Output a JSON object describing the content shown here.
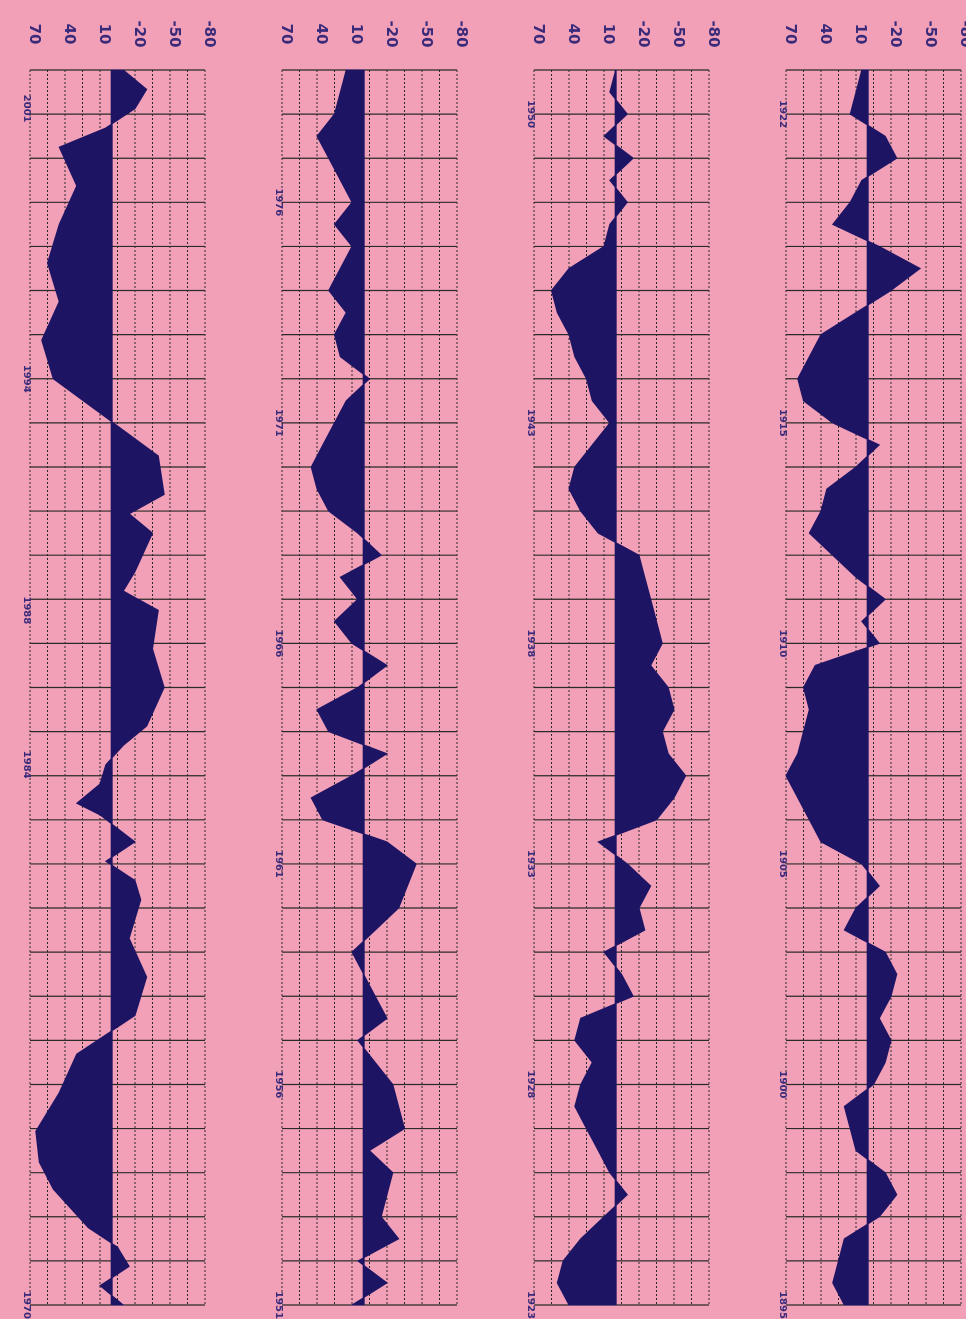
{
  "chart_data": {
    "type": "area",
    "orientation": "rotated",
    "axis_ticks": [
      "70",
      "40",
      "10",
      "-20",
      "-50",
      "-80"
    ],
    "ylim": [
      -80,
      70
    ],
    "grid": true,
    "colors": {
      "background": "#f2a0b8",
      "fill": "#1e1464",
      "grid": "#2a2a2a",
      "text": "#3a2a7a"
    },
    "panels": [
      {
        "year_labels": [
          "1970",
          "1984",
          "1988",
          "1994",
          "2001"
        ],
        "x_range": [
          1970,
          2002
        ],
        "samples": [
          [
            1970.0,
            -10
          ],
          [
            1970.5,
            10
          ],
          [
            1971.0,
            -15
          ],
          [
            1971.5,
            -5
          ],
          [
            1972.0,
            20
          ],
          [
            1973.0,
            50
          ],
          [
            1973.7,
            62
          ],
          [
            1974.5,
            65
          ],
          [
            1975.5,
            45
          ],
          [
            1976.5,
            30
          ],
          [
            1977.5,
            -20
          ],
          [
            1978.5,
            -30
          ],
          [
            1979.5,
            -15
          ],
          [
            1980.5,
            -25
          ],
          [
            1981.0,
            -20
          ],
          [
            1981.5,
            5
          ],
          [
            1982.0,
            -20
          ],
          [
            1982.7,
            10
          ],
          [
            1983.0,
            30
          ],
          [
            1983.5,
            10
          ],
          [
            1984.0,
            5
          ],
          [
            1984.5,
            -10
          ],
          [
            1985.0,
            -30
          ],
          [
            1986.0,
            -45
          ],
          [
            1987.0,
            -35
          ],
          [
            1988.0,
            -40
          ],
          [
            1988.5,
            -10
          ],
          [
            1989.0,
            -20
          ],
          [
            1990.0,
            -35
          ],
          [
            1990.5,
            -15
          ],
          [
            1991.0,
            -45
          ],
          [
            1992.0,
            -40
          ],
          [
            1993.0,
            5
          ],
          [
            1994.0,
            50
          ],
          [
            1995.0,
            60
          ],
          [
            1996.0,
            45
          ],
          [
            1997.0,
            55
          ],
          [
            1998.0,
            45
          ],
          [
            1999.0,
            30
          ],
          [
            2000.0,
            45
          ],
          [
            2000.5,
            5
          ],
          [
            2001.0,
            -20
          ],
          [
            2001.5,
            -30
          ],
          [
            2002.0,
            -10
          ]
        ]
      },
      {
        "year_labels": [
          "1951",
          "1956",
          "1961",
          "1966",
          "1971",
          "1976"
        ],
        "x_range": [
          1951,
          1979
        ],
        "samples": [
          [
            1951.0,
            10
          ],
          [
            1951.5,
            -20
          ],
          [
            1952.0,
            5
          ],
          [
            1952.5,
            -30
          ],
          [
            1953.0,
            -15
          ],
          [
            1954.0,
            -25
          ],
          [
            1954.5,
            -5
          ],
          [
            1955.0,
            -35
          ],
          [
            1956.0,
            -25
          ],
          [
            1957.0,
            5
          ],
          [
            1957.5,
            -20
          ],
          [
            1958.0,
            -10
          ],
          [
            1959.0,
            10
          ],
          [
            1960.0,
            -30
          ],
          [
            1961.0,
            -45
          ],
          [
            1961.5,
            -20
          ],
          [
            1962.0,
            35
          ],
          [
            1962.5,
            45
          ],
          [
            1963.0,
            10
          ],
          [
            1963.5,
            -20
          ],
          [
            1964.0,
            30
          ],
          [
            1964.5,
            40
          ],
          [
            1965.0,
            5
          ],
          [
            1965.5,
            -20
          ],
          [
            1966.0,
            10
          ],
          [
            1966.5,
            25
          ],
          [
            1967.0,
            5
          ],
          [
            1967.5,
            20
          ],
          [
            1968.0,
            -15
          ],
          [
            1968.5,
            5
          ],
          [
            1969.0,
            30
          ],
          [
            1969.5,
            40
          ],
          [
            1970.0,
            45
          ],
          [
            1970.5,
            35
          ],
          [
            1971.0,
            25
          ],
          [
            1971.5,
            15
          ],
          [
            1972.0,
            -5
          ],
          [
            1972.5,
            20
          ],
          [
            1973.0,
            25
          ],
          [
            1973.5,
            15
          ],
          [
            1974.0,
            30
          ],
          [
            1974.5,
            20
          ],
          [
            1975.0,
            10
          ],
          [
            1975.5,
            25
          ],
          [
            1976.0,
            10
          ],
          [
            1977.0,
            30
          ],
          [
            1977.5,
            40
          ],
          [
            1978.0,
            25
          ],
          [
            1979.0,
            15
          ]
        ]
      },
      {
        "year_labels": [
          "1923",
          "1928",
          "1933",
          "1938",
          "1943",
          "1950"
        ],
        "x_range": [
          1923,
          1951
        ],
        "samples": [
          [
            1923.0,
            40
          ],
          [
            1923.5,
            50
          ],
          [
            1924.0,
            45
          ],
          [
            1924.5,
            30
          ],
          [
            1925.0,
            10
          ],
          [
            1925.5,
            -10
          ],
          [
            1926.0,
            5
          ],
          [
            1926.5,
            15
          ],
          [
            1927.0,
            25
          ],
          [
            1927.5,
            35
          ],
          [
            1928.0,
            30
          ],
          [
            1928.5,
            20
          ],
          [
            1929.0,
            35
          ],
          [
            1929.5,
            30
          ],
          [
            1930.0,
            -15
          ],
          [
            1930.5,
            -5
          ],
          [
            1931.0,
            10
          ],
          [
            1931.5,
            -25
          ],
          [
            1932.0,
            -20
          ],
          [
            1932.5,
            -30
          ],
          [
            1933.0,
            -10
          ],
          [
            1933.5,
            15
          ],
          [
            1934.0,
            -35
          ],
          [
            1934.5,
            -50
          ],
          [
            1935.0,
            -60
          ],
          [
            1935.5,
            -45
          ],
          [
            1936.0,
            -40
          ],
          [
            1936.5,
            -50
          ],
          [
            1937.0,
            -45
          ],
          [
            1937.5,
            -30
          ],
          [
            1938.0,
            -40
          ],
          [
            1938.5,
            -35
          ],
          [
            1939.0,
            -30
          ],
          [
            1939.5,
            -25
          ],
          [
            1940.0,
            -20
          ],
          [
            1940.5,
            15
          ],
          [
            1941.0,
            30
          ],
          [
            1941.5,
            40
          ],
          [
            1942.0,
            35
          ],
          [
            1942.5,
            20
          ],
          [
            1943.0,
            5
          ],
          [
            1943.5,
            20
          ],
          [
            1944.0,
            25
          ],
          [
            1944.5,
            35
          ],
          [
            1945.0,
            40
          ],
          [
            1945.5,
            50
          ],
          [
            1946.0,
            55
          ],
          [
            1946.5,
            40
          ],
          [
            1947.0,
            10
          ],
          [
            1947.5,
            5
          ],
          [
            1948.0,
            -10
          ],
          [
            1948.5,
            5
          ],
          [
            1949.0,
            -15
          ],
          [
            1949.5,
            10
          ],
          [
            1950.0,
            -10
          ],
          [
            1950.5,
            5
          ],
          [
            1951.0,
            0
          ]
        ]
      },
      {
        "year_labels": [
          "1895",
          "1900",
          "1905",
          "1910",
          "1915",
          "1922"
        ],
        "x_range": [
          1895,
          1923
        ],
        "samples": [
          [
            1895.0,
            20
          ],
          [
            1895.5,
            30
          ],
          [
            1896.0,
            25
          ],
          [
            1896.5,
            20
          ],
          [
            1897.0,
            -10
          ],
          [
            1897.5,
            -25
          ],
          [
            1898.0,
            -15
          ],
          [
            1898.5,
            10
          ],
          [
            1899.0,
            15
          ],
          [
            1899.5,
            20
          ],
          [
            1900.0,
            -5
          ],
          [
            1900.5,
            -15
          ],
          [
            1901.0,
            -20
          ],
          [
            1901.5,
            -10
          ],
          [
            1902.0,
            -20
          ],
          [
            1902.5,
            -25
          ],
          [
            1903.0,
            -15
          ],
          [
            1903.5,
            20
          ],
          [
            1904.0,
            10
          ],
          [
            1904.5,
            -10
          ],
          [
            1905.0,
            5
          ],
          [
            1905.5,
            40
          ],
          [
            1906.0,
            50
          ],
          [
            1906.5,
            60
          ],
          [
            1907.0,
            70
          ],
          [
            1907.5,
            60
          ],
          [
            1908.0,
            55
          ],
          [
            1908.5,
            50
          ],
          [
            1909.0,
            55
          ],
          [
            1909.5,
            45
          ],
          [
            1910.0,
            -10
          ],
          [
            1910.5,
            5
          ],
          [
            1911.0,
            -15
          ],
          [
            1911.5,
            10
          ],
          [
            1912.0,
            30
          ],
          [
            1912.5,
            50
          ],
          [
            1913.0,
            40
          ],
          [
            1913.5,
            35
          ],
          [
            1914.0,
            10
          ],
          [
            1914.5,
            -10
          ],
          [
            1915.0,
            30
          ],
          [
            1915.5,
            55
          ],
          [
            1916.0,
            60
          ],
          [
            1916.5,
            50
          ],
          [
            1917.0,
            40
          ],
          [
            1917.5,
            10
          ],
          [
            1918.0,
            -20
          ],
          [
            1918.5,
            -45
          ],
          [
            1919.0,
            -10
          ],
          [
            1919.5,
            30
          ],
          [
            1920.0,
            15
          ],
          [
            1920.5,
            5
          ],
          [
            1921.0,
            -25
          ],
          [
            1921.5,
            -15
          ],
          [
            1922.0,
            15
          ],
          [
            1922.5,
            10
          ],
          [
            1923.0,
            5
          ]
        ]
      }
    ]
  }
}
